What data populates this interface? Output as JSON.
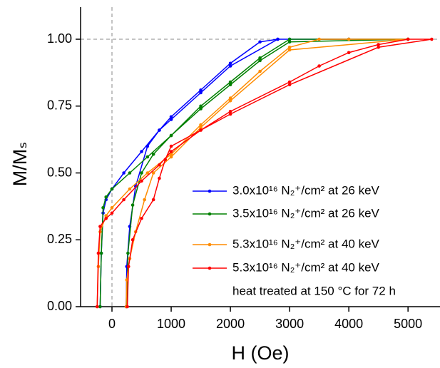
{
  "chart_data": {
    "type": "line",
    "xlabel": "H (Oe)",
    "ylabel": "M/Mₛ",
    "xlim": [
      -530,
      5540
    ],
    "ylim": [
      0,
      1.12
    ],
    "xticks": [
      0,
      1000,
      2000,
      3000,
      4000,
      5000
    ],
    "yticks": [
      {
        "value": 0,
        "label": "0.00"
      },
      {
        "value": 0.25,
        "label": "0.25"
      },
      {
        "value": 0.5,
        "label": "0.50"
      },
      {
        "value": 0.75,
        "label": "0.75"
      },
      {
        "value": 1,
        "label": "1.00"
      }
    ],
    "grid": false,
    "legend": "lower right",
    "reference_lines": [
      {
        "axis": "x",
        "value": 0
      },
      {
        "axis": "y",
        "value": 1
      }
    ],
    "legend_note": "heat treated at 150 °C for 72 h",
    "series": [
      {
        "name": "3.0x10¹⁶ N₂⁺/cm² at 26 keV",
        "color": "#0000ff",
        "x": [
          -200,
          -180,
          -150,
          -100,
          0,
          200,
          500,
          800,
          1000,
          1500,
          2000,
          2500,
          2800,
          3000,
          4000,
          5000,
          2800,
          2000,
          1500,
          1000,
          800,
          600,
          400,
          300,
          250,
          240
        ],
        "values": [
          0,
          0.2,
          0.35,
          0.4,
          0.44,
          0.5,
          0.58,
          0.66,
          0.71,
          0.81,
          0.91,
          0.99,
          1.0,
          1.0,
          1.0,
          1.0,
          1.0,
          0.9,
          0.8,
          0.7,
          0.66,
          0.6,
          0.45,
          0.3,
          0.15,
          0
        ]
      },
      {
        "name": "3.5x10¹⁶ N₂⁺/cm² at 26 keV",
        "color": "#008000",
        "x": [
          -200,
          -180,
          -150,
          -100,
          0,
          300,
          600,
          1000,
          1500,
          2000,
          2500,
          3000,
          4000,
          5000,
          3000,
          2500,
          2000,
          1500,
          1000,
          700,
          500,
          350,
          270,
          250
        ],
        "values": [
          0,
          0.2,
          0.37,
          0.41,
          0.44,
          0.5,
          0.56,
          0.64,
          0.75,
          0.84,
          0.93,
          1.0,
          1.0,
          1.0,
          0.99,
          0.92,
          0.83,
          0.74,
          0.64,
          0.57,
          0.5,
          0.38,
          0.2,
          0
        ]
      },
      {
        "name": "5.3x10¹⁶ N₂⁺/cm² at 40 keV",
        "color": "#ff8c00",
        "x": [
          -250,
          -230,
          -200,
          -100,
          0,
          300,
          600,
          1000,
          1500,
          2000,
          2500,
          3000,
          3500,
          4000,
          5000,
          3000,
          2000,
          1500,
          1000,
          700,
          550,
          400,
          300,
          250,
          240
        ],
        "values": [
          0,
          0.15,
          0.28,
          0.34,
          0.37,
          0.44,
          0.5,
          0.57,
          0.68,
          0.78,
          0.88,
          0.97,
          1.0,
          1.0,
          1.0,
          0.96,
          0.77,
          0.67,
          0.56,
          0.5,
          0.4,
          0.28,
          0.18,
          0.1,
          0
        ]
      },
      {
        "name": "5.3x10¹⁶ N₂⁺/cm² at 40 keV",
        "color": "#ff0000",
        "x": [
          -250,
          -230,
          -200,
          -100,
          0,
          200,
          500,
          800,
          1000,
          1500,
          2000,
          3000,
          3500,
          4000,
          4500,
          5000,
          5400,
          4500,
          3000,
          2000,
          1500,
          1000,
          900,
          800,
          700,
          500,
          350,
          280,
          260
        ],
        "values": [
          0,
          0.2,
          0.3,
          0.33,
          0.35,
          0.4,
          0.47,
          0.53,
          0.58,
          0.66,
          0.73,
          0.84,
          0.9,
          0.95,
          0.98,
          1.0,
          1.0,
          0.97,
          0.83,
          0.72,
          0.66,
          0.6,
          0.55,
          0.48,
          0.4,
          0.33,
          0.25,
          0.15,
          0
        ]
      }
    ]
  }
}
